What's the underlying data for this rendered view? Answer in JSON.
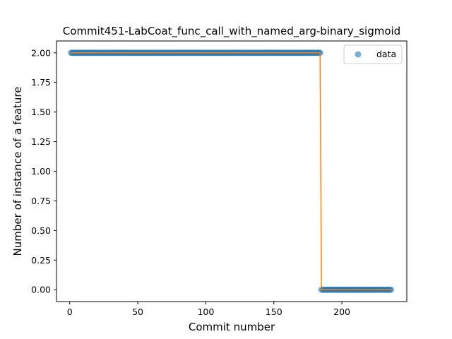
{
  "chart_data": {
    "type": "scatter",
    "title": "Commit451-LabCoat_func_call_with_named_arg-binary_sigmoid",
    "xlabel": "Commit number",
    "ylabel": "Number of instance of a feature",
    "xlim": [
      -9.7,
      247.7
    ],
    "ylim": [
      -0.1,
      2.1
    ],
    "xticks": [
      0,
      50,
      100,
      150,
      200
    ],
    "yticks": [
      0.0,
      0.25,
      0.5,
      0.75,
      1.0,
      1.25,
      1.5,
      1.75,
      2.0
    ],
    "ytick_labels": [
      "0.00",
      "0.25",
      "0.50",
      "0.75",
      "1.00",
      "1.25",
      "1.50",
      "1.75",
      "2.00"
    ],
    "grid": false,
    "legend_position": "top-right",
    "series": [
      {
        "name": "data",
        "kind": "markers",
        "color": "#1f77b4",
        "alpha": 0.6,
        "segments": [
          {
            "x_start": 1,
            "x_end": 184,
            "y": 2
          },
          {
            "x_start": 185,
            "x_end": 236,
            "y": 0
          }
        ]
      },
      {
        "kind": "line",
        "color": "#ff7f0e",
        "points": [
          [
            1,
            2
          ],
          [
            184,
            2
          ],
          [
            185,
            0
          ],
          [
            236,
            0
          ]
        ]
      }
    ]
  }
}
